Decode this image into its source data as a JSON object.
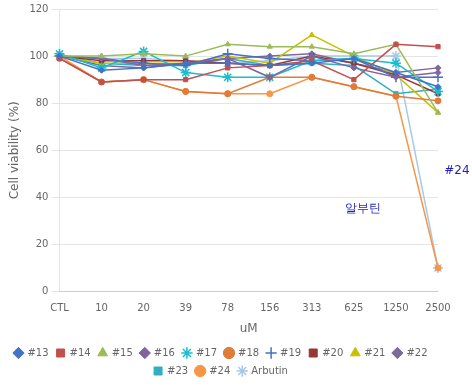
{
  "chart_data": {
    "type": "line",
    "categories": [
      "CTL",
      "10",
      "20",
      "39",
      "78",
      "156",
      "313",
      "625",
      "1250",
      "2500"
    ],
    "series": [
      {
        "name": "#13",
        "color": "#4472C4",
        "marker": "diamond",
        "values": [
          100,
          94,
          95,
          97,
          97,
          96,
          97,
          99,
          93,
          87
        ]
      },
      {
        "name": "#14",
        "color": "#C0504D",
        "marker": "square",
        "values": [
          99,
          89,
          90,
          90,
          95,
          96,
          98,
          90,
          105,
          104
        ]
      },
      {
        "name": "#15",
        "color": "#9BBB59",
        "marker": "triangle",
        "values": [
          100,
          100,
          101,
          100,
          105,
          104,
          104,
          101,
          105,
          76
        ]
      },
      {
        "name": "#16",
        "color": "#8064A2",
        "marker": "diamond",
        "values": [
          100,
          99,
          96,
          97,
          99,
          91,
          100,
          95,
          91,
          93
        ]
      },
      {
        "name": "#17",
        "color": "#17BECF",
        "marker": "star",
        "values": [
          101,
          95,
          102,
          93,
          91,
          91,
          98,
          99,
          97,
          85
        ]
      },
      {
        "name": "#18",
        "color": "#E07B39",
        "marker": "circle",
        "values": [
          99,
          89,
          90,
          85,
          84,
          91,
          91,
          87,
          83,
          81
        ]
      },
      {
        "name": "#19",
        "color": "#4472C4",
        "marker": "plus",
        "values": [
          100,
          99,
          97,
          96,
          101,
          99,
          98,
          99,
          91,
          91
        ]
      },
      {
        "name": "#20",
        "color": "#953735",
        "marker": "square",
        "values": [
          100,
          98,
          98,
          98,
          97,
          96,
          100,
          97,
          92,
          84
        ]
      },
      {
        "name": "#21",
        "color": "#C8C000",
        "marker": "triangle",
        "values": [
          100,
          97,
          97,
          97,
          100,
          97,
          109,
          100,
          92,
          76
        ]
      },
      {
        "name": "#22",
        "color": "#7B6A9A",
        "marker": "diamond",
        "values": [
          100,
          96,
          95,
          97,
          99,
          100,
          101,
          97,
          93,
          95
        ]
      },
      {
        "name": "#23",
        "color": "#31AEBF",
        "marker": "square",
        "values": [
          100,
          97,
          96,
          96,
          99,
          96,
          97,
          96,
          84,
          86
        ]
      },
      {
        "name": "#24",
        "color": "#F79646",
        "marker": "circle",
        "values": [
          100,
          89,
          90,
          85,
          84,
          84,
          91,
          87,
          83,
          10
        ]
      },
      {
        "name": "Arbutin",
        "color": "#A8C8E8",
        "marker": "star",
        "values": [
          100,
          99,
          99,
          98,
          97,
          98,
          100,
          100,
          100,
          10
        ]
      }
    ],
    "x_label": "uM",
    "y_label": "Cell viability (%)",
    "ylim": [
      0,
      120
    ],
    "yticks": [
      0,
      20,
      40,
      60,
      80,
      100,
      120
    ],
    "grid": "y",
    "legend": "bottom",
    "annotations": [
      {
        "text": "알부틴",
        "color": "#1F1FBF"
      },
      {
        "text": "#24",
        "color": "#1F1FBF"
      }
    ]
  }
}
